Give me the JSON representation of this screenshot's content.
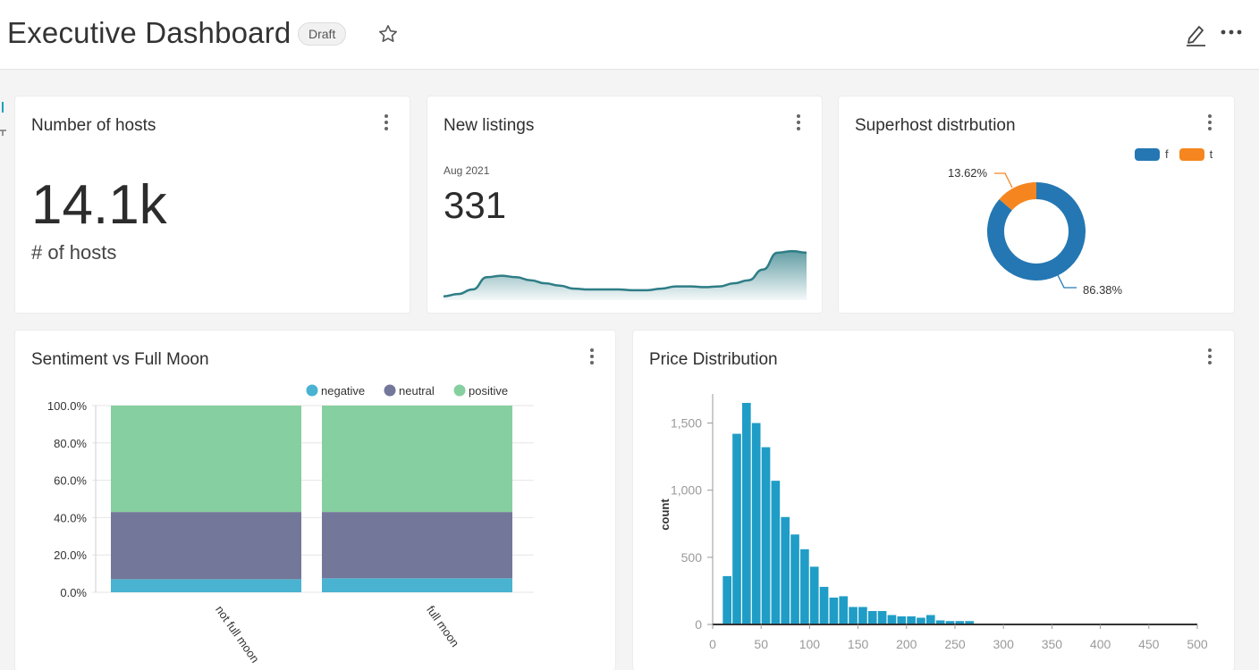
{
  "header": {
    "title": "Executive Dashboard",
    "badge": "Draft"
  },
  "icons": {
    "star": "star-icon",
    "edit": "pencil-icon",
    "more": "more-horizontal-icon"
  },
  "colors": {
    "teal": "#2e7d86",
    "blue": "#2477b3",
    "orange": "#f5861f",
    "hist": "#1f9dc6"
  },
  "cards": {
    "hosts": {
      "title": "Number of hosts",
      "value": "14.1k",
      "label": "# of hosts"
    },
    "listings": {
      "title": "New listings",
      "period": "Aug 2021",
      "value": "331"
    },
    "superhost": {
      "title": "Superhost distrbution",
      "legend": [
        "f",
        "t"
      ],
      "pct_f": "86.38%",
      "pct_t": "13.62%"
    },
    "sentiment": {
      "title": "Sentiment vs Full Moon"
    },
    "price": {
      "title": "Price Distribution"
    }
  },
  "chart_data": [
    {
      "type": "area",
      "title": "New listings",
      "values": [
        5,
        8,
        14,
        30,
        32,
        30,
        26,
        22,
        19,
        15,
        14,
        14,
        14,
        13,
        13,
        15,
        18,
        18,
        17,
        18,
        22,
        26,
        40,
        62,
        64,
        62
      ],
      "grid": false
    },
    {
      "type": "pie",
      "title": "Superhost distrbution",
      "labels": [
        "f",
        "t"
      ],
      "values": [
        86.38,
        13.62
      ],
      "legend": "top-right"
    },
    {
      "type": "bar",
      "title": "Sentiment vs Full Moon",
      "stacked": true,
      "categories": [
        "not full moon",
        "full moon"
      ],
      "series": [
        {
          "name": "negative",
          "values": [
            7.0,
            7.5
          ]
        },
        {
          "name": "neutral",
          "values": [
            36.0,
            35.5
          ]
        },
        {
          "name": "positive",
          "values": [
            57.0,
            57.0
          ]
        }
      ],
      "y_ticks": [
        "0.0%",
        "20.0%",
        "40.0%",
        "60.0%",
        "80.0%",
        "100.0%"
      ],
      "ylim": [
        0,
        100
      ],
      "legend": "top-right",
      "grid": true
    },
    {
      "type": "bar",
      "title": "Price Distribution",
      "ylabel": "count",
      "bin_starts": [
        10,
        20,
        30,
        40,
        50,
        60,
        70,
        80,
        90,
        100,
        110,
        120,
        130,
        140,
        150,
        160,
        170,
        180,
        190,
        200,
        210,
        220,
        230,
        240,
        250,
        260,
        270,
        280,
        290,
        300
      ],
      "values": [
        360,
        1420,
        1650,
        1500,
        1320,
        1070,
        800,
        670,
        560,
        430,
        280,
        200,
        210,
        130,
        130,
        100,
        100,
        70,
        60,
        60,
        50,
        70,
        30,
        25,
        25,
        25,
        5,
        5,
        5,
        2
      ],
      "x_ticks": [
        "0",
        "50",
        "100",
        "150",
        "200",
        "250",
        "300",
        "350",
        "400",
        "450",
        "500"
      ],
      "y_ticks": [
        "0",
        "500",
        "1,000",
        "1,500"
      ],
      "xlim": [
        0,
        500
      ],
      "ylim": [
        0,
        1650
      ]
    }
  ]
}
